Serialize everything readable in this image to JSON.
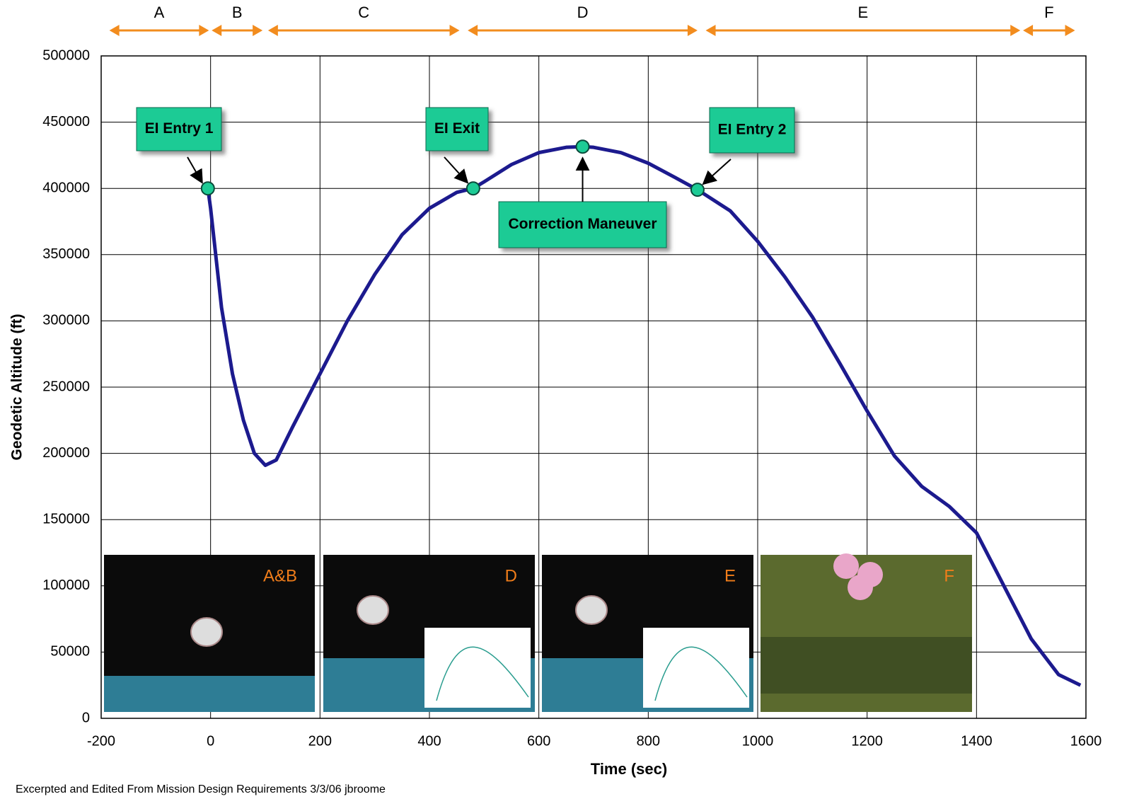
{
  "chart_data": {
    "type": "line",
    "xlabel": "Time (sec)",
    "ylabel": "Geodetic Altitude (ft)",
    "xlim": [
      -200,
      1600
    ],
    "xticks": [
      -200,
      0,
      200,
      400,
      600,
      800,
      1000,
      1200,
      1400,
      1600
    ],
    "ylim": [
      0,
      500000
    ],
    "yticks": [
      0,
      50000,
      100000,
      150000,
      200000,
      250000,
      300000,
      350000,
      400000,
      450000,
      500000
    ],
    "grid": true,
    "series": [
      {
        "color": "#1c1a8e",
        "x": [
          -5,
          0,
          20,
          40,
          60,
          80,
          100,
          120,
          150,
          200,
          250,
          300,
          350,
          400,
          450,
          480,
          500,
          550,
          600,
          650,
          680,
          700,
          750,
          800,
          850,
          890,
          950,
          1000,
          1050,
          1100,
          1150,
          1200,
          1250,
          1300,
          1350,
          1400,
          1450,
          1500,
          1550,
          1590
        ],
        "values": [
          400000,
          385000,
          310000,
          260000,
          225000,
          200000,
          191000,
          195000,
          220000,
          260000,
          300000,
          335000,
          365000,
          385000,
          397000,
          400000,
          405000,
          418000,
          427000,
          431000,
          431500,
          431000,
          427000,
          419000,
          408000,
          399000,
          383000,
          360000,
          333000,
          303000,
          268000,
          232000,
          198000,
          175000,
          160000,
          140000,
          100000,
          60000,
          33000,
          25000
        ]
      }
    ],
    "annotations": [
      {
        "text": "EI Entry 1",
        "x": -5,
        "y": 400000
      },
      {
        "text": "EI Exit",
        "x": 480,
        "y": 400000
      },
      {
        "text": "Correction Maneuver",
        "x": 680,
        "y": 431500
      },
      {
        "text": "EI Entry 2",
        "x": 890,
        "y": 399000
      }
    ],
    "phases": [
      {
        "label": "A",
        "start": -185,
        "end": -3
      },
      {
        "label": "B",
        "start": 2,
        "end": 95
      },
      {
        "label": "C",
        "start": 105,
        "end": 455
      },
      {
        "label": "D",
        "start": 470,
        "end": 890
      },
      {
        "label": "E",
        "start": 905,
        "end": 1480
      },
      {
        "label": "F",
        "start": 1485,
        "end": 1580
      }
    ],
    "insets": [
      {
        "label": "A&B"
      },
      {
        "label": "D"
      },
      {
        "label": "E"
      },
      {
        "label": "F"
      }
    ],
    "footnote": "Excerpted and Edited From Mission Design Requirements 3/3/06 jbroome"
  }
}
